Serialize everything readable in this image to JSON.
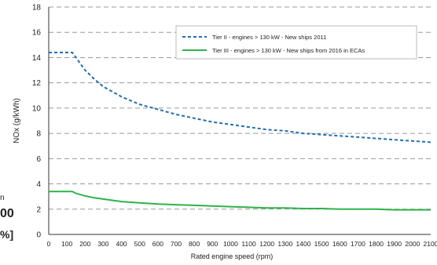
{
  "left_crop": {
    "line1": "00",
    "line2": "%]",
    "tail": "n"
  },
  "chart_data": {
    "type": "line",
    "title": "",
    "xlabel": "Rated engine speed (rpm)",
    "ylabel": "NOx (g/kWh)",
    "xlim": [
      0,
      2100
    ],
    "ylim": [
      0,
      18
    ],
    "xticks": [
      0,
      100,
      200,
      300,
      400,
      500,
      600,
      700,
      800,
      900,
      1000,
      1100,
      1200,
      1300,
      1400,
      1500,
      1600,
      1700,
      1800,
      1900,
      2000,
      2100
    ],
    "yticks": [
      0,
      2,
      4,
      6,
      8,
      10,
      12,
      14,
      16,
      18
    ],
    "grid": "horizontal dashed",
    "legend_position": "top-right",
    "series": [
      {
        "name": "Tier II - engines > 130 kW - New ships 2011",
        "color": "#1f6db5",
        "style": "dashed",
        "x": [
          0,
          130,
          150,
          200,
          250,
          300,
          400,
          500,
          600,
          700,
          800,
          900,
          1000,
          1100,
          1200,
          1300,
          1400,
          1500,
          1600,
          1700,
          1800,
          1900,
          2000,
          2100
        ],
        "y": [
          14.4,
          14.4,
          14.0,
          13.0,
          12.3,
          11.7,
          10.9,
          10.3,
          9.9,
          9.5,
          9.2,
          8.9,
          8.7,
          8.5,
          8.3,
          8.2,
          8.0,
          7.9,
          7.8,
          7.7,
          7.6,
          7.5,
          7.4,
          7.3
        ]
      },
      {
        "name": "Tier III - engines > 130 kW - New ships from 2016 in ECAs",
        "color": "#2db34a",
        "style": "solid",
        "x": [
          0,
          130,
          150,
          200,
          250,
          300,
          400,
          500,
          600,
          700,
          800,
          900,
          1000,
          1100,
          1200,
          1300,
          1400,
          1500,
          1600,
          1700,
          1800,
          1900,
          2000,
          2100
        ],
        "y": [
          3.4,
          3.4,
          3.25,
          3.05,
          2.9,
          2.8,
          2.6,
          2.5,
          2.4,
          2.35,
          2.3,
          2.25,
          2.2,
          2.15,
          2.1,
          2.1,
          2.05,
          2.05,
          2.0,
          2.0,
          2.0,
          1.95,
          1.95,
          1.95
        ]
      }
    ]
  }
}
